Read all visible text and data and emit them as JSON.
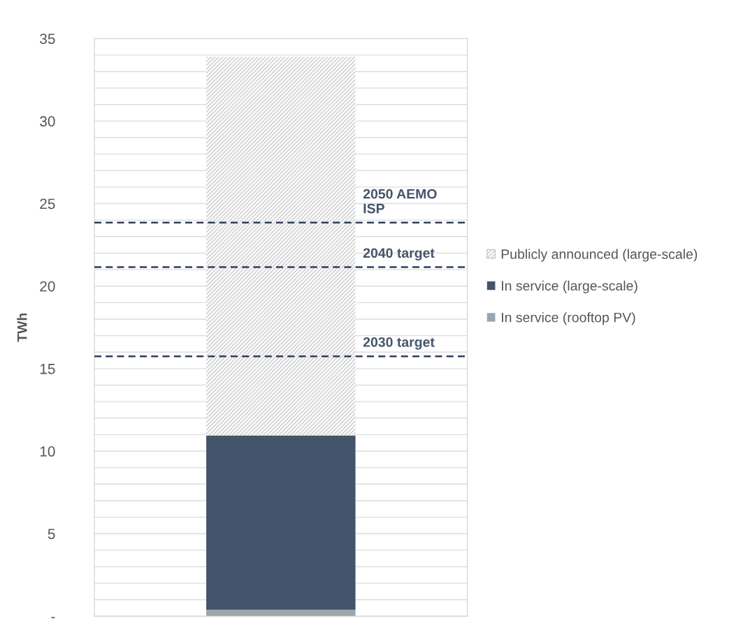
{
  "chart_data": {
    "type": "bar",
    "stacked": true,
    "ylabel": "TWh",
    "categories": [
      null
    ],
    "series": [
      {
        "name": "In service (rooftop PV)",
        "color": "#9aa5ae",
        "values": [
          0.4
        ]
      },
      {
        "name": "In service (large-scale)",
        "color": "#44546a",
        "values": [
          10.55
        ]
      },
      {
        "name": "Publicly announced (large-scale)",
        "color": "#c8c8c8",
        "values": [
          22.95
        ]
      }
    ],
    "ylim": [
      0,
      35
    ],
    "yticks": [
      {
        "value": 0,
        "label": "-"
      },
      {
        "value": 1,
        "label": null
      },
      {
        "value": 2,
        "label": null
      },
      {
        "value": 3,
        "label": null
      },
      {
        "value": 4,
        "label": null
      },
      5,
      {
        "value": 6,
        "label": null
      },
      {
        "value": 7,
        "label": null
      },
      {
        "value": 8,
        "label": null
      },
      {
        "value": 9,
        "label": null
      },
      10,
      {
        "value": 11,
        "label": null
      },
      {
        "value": 12,
        "label": null
      },
      {
        "value": 13,
        "label": null
      },
      {
        "value": 14,
        "label": null
      },
      15,
      {
        "value": 16,
        "label": null
      },
      {
        "value": 17,
        "label": null
      },
      {
        "value": 18,
        "label": null
      },
      {
        "value": 19,
        "label": null
      },
      20,
      {
        "value": 21,
        "label": null
      },
      {
        "value": 22,
        "label": null
      },
      {
        "value": 23,
        "label": null
      },
      {
        "value": 24,
        "label": null
      },
      25,
      {
        "value": 26,
        "label": null
      },
      {
        "value": 27,
        "label": null
      },
      {
        "value": 28,
        "label": null
      },
      {
        "value": 29,
        "label": null
      },
      30,
      {
        "value": 31,
        "label": null
      },
      {
        "value": 32,
        "label": null
      },
      {
        "value": 33,
        "label": null
      },
      {
        "value": 34,
        "label": null
      },
      35
    ],
    "ref_lines": [
      {
        "axis": "y",
        "value": 23.85,
        "label": "2050 AEMO\nISP",
        "color": "#2f3e5c",
        "line_style": "dashed"
      },
      {
        "axis": "y",
        "value": 21.15,
        "label": "2040 target",
        "color": "#2f3e5c",
        "line_style": "dashed"
      },
      {
        "axis": "y",
        "value": 15.75,
        "label": "2030 target",
        "color": "#2f3e5c",
        "line_style": "dashed"
      }
    ],
    "grid": "y",
    "legend": "right"
  }
}
